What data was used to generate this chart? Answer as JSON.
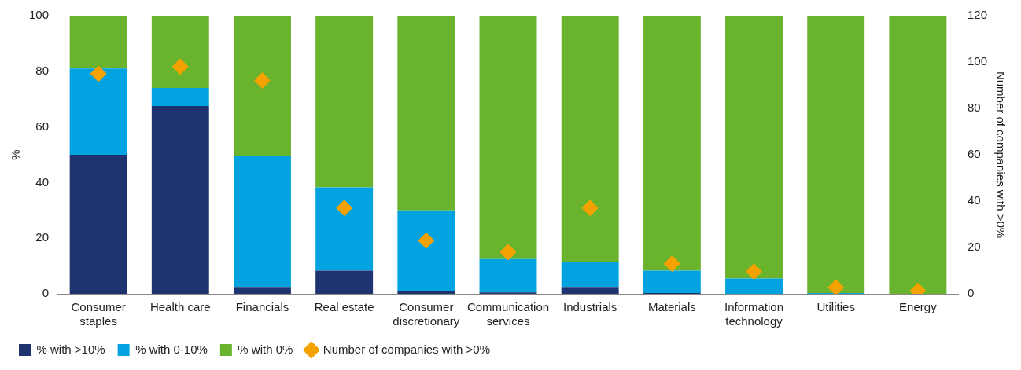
{
  "chart_data": {
    "type": "bar",
    "stacked": true,
    "ylabel": "%",
    "y2label": "Number of companies with >0%",
    "categories": [
      "Consumer staples",
      "Health care",
      "Financials",
      "Real estate",
      "Consumer discretionary",
      "Communication services",
      "Industrials",
      "Materials",
      "Information technology",
      "Utilities",
      "Energy"
    ],
    "series": [
      {
        "name": "% with >10%",
        "color": "#1f3370",
        "values": [
          50,
          67.5,
          2.5,
          8.3,
          1,
          0.5,
          2.5,
          0.3,
          0,
          0,
          0
        ]
      },
      {
        "name": "% with 0-10%",
        "color": "#00a3e0",
        "values": [
          31,
          6.5,
          47,
          30,
          29,
          12,
          9,
          8,
          5.5,
          0.3,
          0
        ]
      },
      {
        "name": "% with 0%",
        "color": "#6ab42d",
        "values": [
          19,
          26,
          50.5,
          61.7,
          70,
          87.5,
          88.5,
          91.7,
          94.5,
          99.7,
          100
        ]
      },
      {
        "name": "Number of companies with >0%",
        "type": "scatter",
        "axis": "y2",
        "marker": "diamond",
        "color": "#f5a200",
        "values": [
          95,
          98,
          92,
          37,
          23,
          18,
          37,
          13,
          9.6,
          2.7,
          1.3
        ]
      }
    ],
    "ylim": [
      0,
      100
    ],
    "yticks": [
      0,
      20,
      40,
      60,
      80,
      100
    ],
    "y2lim": [
      0,
      120
    ],
    "y2ticks": [
      0,
      20,
      40,
      60,
      80,
      100,
      120
    ],
    "grid": false,
    "legend": "bottom left"
  }
}
